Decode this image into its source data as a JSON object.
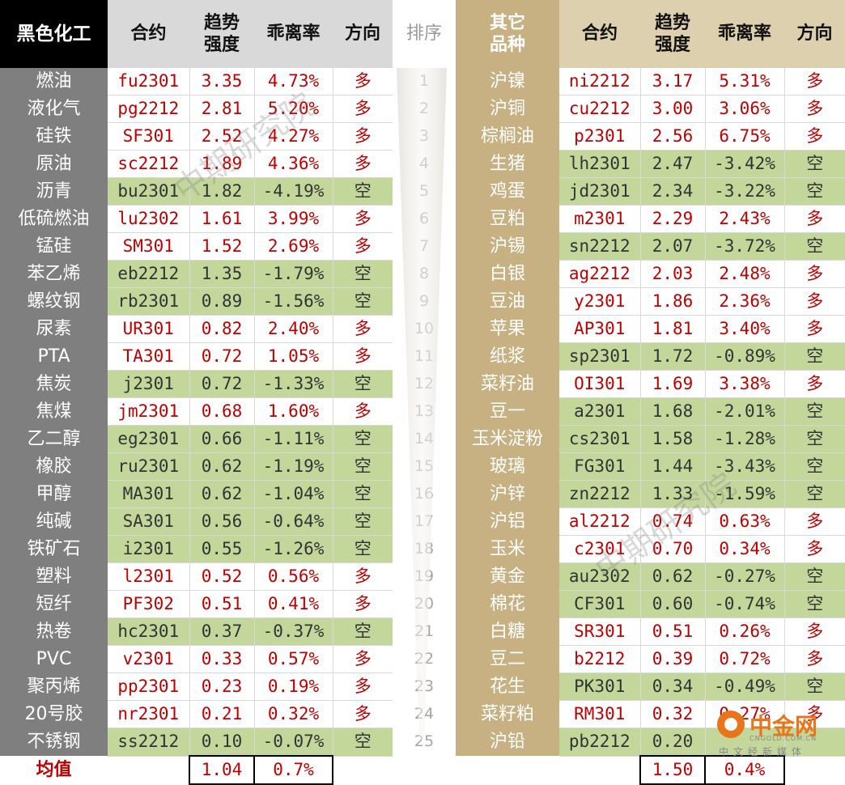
{
  "header": {
    "left_category": "黑色化工",
    "contract": "合约",
    "trend_strength": "趋势\n强度",
    "deviation_rate": "乖离率",
    "direction": "方向",
    "rank": "排序",
    "right_category": "其它\n品种"
  },
  "left_rows": [
    {
      "name": "燃油",
      "contract": "fu2301",
      "strength": "3.35",
      "deviation": "4.73%",
      "direction": "多"
    },
    {
      "name": "液化气",
      "contract": "pg2212",
      "strength": "2.81",
      "deviation": "5.20%",
      "direction": "多"
    },
    {
      "name": "硅铁",
      "contract": "SF301",
      "strength": "2.52",
      "deviation": "4.27%",
      "direction": "多"
    },
    {
      "name": "原油",
      "contract": "sc2212",
      "strength": "1.89",
      "deviation": "4.36%",
      "direction": "多"
    },
    {
      "name": "沥青",
      "contract": "bu2301",
      "strength": "1.82",
      "deviation": "-4.19%",
      "direction": "空"
    },
    {
      "name": "低硫燃油",
      "contract": "lu2302",
      "strength": "1.61",
      "deviation": "3.99%",
      "direction": "多"
    },
    {
      "name": "锰硅",
      "contract": "SM301",
      "strength": "1.52",
      "deviation": "2.69%",
      "direction": "多"
    },
    {
      "name": "苯乙烯",
      "contract": "eb2212",
      "strength": "1.35",
      "deviation": "-1.79%",
      "direction": "空"
    },
    {
      "name": "螺纹钢",
      "contract": "rb2301",
      "strength": "0.89",
      "deviation": "-1.56%",
      "direction": "空"
    },
    {
      "name": "尿素",
      "contract": "UR301",
      "strength": "0.82",
      "deviation": "2.40%",
      "direction": "多"
    },
    {
      "name": "PTA",
      "contract": "TA301",
      "strength": "0.72",
      "deviation": "1.05%",
      "direction": "多"
    },
    {
      "name": "焦炭",
      "contract": "j2301",
      "strength": "0.72",
      "deviation": "-1.33%",
      "direction": "空"
    },
    {
      "name": "焦煤",
      "contract": "jm2301",
      "strength": "0.68",
      "deviation": "1.60%",
      "direction": "多"
    },
    {
      "name": "乙二醇",
      "contract": "eg2301",
      "strength": "0.66",
      "deviation": "-1.11%",
      "direction": "空"
    },
    {
      "name": "橡胶",
      "contract": "ru2301",
      "strength": "0.62",
      "deviation": "-1.19%",
      "direction": "空"
    },
    {
      "name": "甲醇",
      "contract": "MA301",
      "strength": "0.62",
      "deviation": "-1.04%",
      "direction": "空"
    },
    {
      "name": "纯碱",
      "contract": "SA301",
      "strength": "0.56",
      "deviation": "-0.64%",
      "direction": "空"
    },
    {
      "name": "铁矿石",
      "contract": "i2301",
      "strength": "0.55",
      "deviation": "-1.26%",
      "direction": "空"
    },
    {
      "name": "塑料",
      "contract": "l2301",
      "strength": "0.52",
      "deviation": "0.56%",
      "direction": "多"
    },
    {
      "name": "短纤",
      "contract": "PF302",
      "strength": "0.51",
      "deviation": "0.41%",
      "direction": "多"
    },
    {
      "name": "热卷",
      "contract": "hc2301",
      "strength": "0.37",
      "deviation": "-0.37%",
      "direction": "空"
    },
    {
      "name": "PVC",
      "contract": "v2301",
      "strength": "0.33",
      "deviation": "0.57%",
      "direction": "多"
    },
    {
      "name": "聚丙烯",
      "contract": "pp2301",
      "strength": "0.23",
      "deviation": "0.19%",
      "direction": "多"
    },
    {
      "name": "20号胶",
      "contract": "nr2301",
      "strength": "0.21",
      "deviation": "0.32%",
      "direction": "多"
    },
    {
      "name": "不锈钢",
      "contract": "ss2212",
      "strength": "0.10",
      "deviation": "-0.07%",
      "direction": "空"
    }
  ],
  "ranks": [
    "1",
    "2",
    "3",
    "4",
    "5",
    "6",
    "7",
    "8",
    "9",
    "10",
    "11",
    "12",
    "13",
    "14",
    "15",
    "16",
    "17",
    "18",
    "19",
    "20",
    "21",
    "22",
    "23",
    "24",
    "25"
  ],
  "right_rows": [
    {
      "name": "沪镍",
      "contract": "ni2212",
      "strength": "3.17",
      "deviation": "5.31%",
      "direction": "多"
    },
    {
      "name": "沪铜",
      "contract": "cu2212",
      "strength": "3.00",
      "deviation": "3.06%",
      "direction": "多"
    },
    {
      "name": "棕榈油",
      "contract": "p2301",
      "strength": "2.56",
      "deviation": "6.75%",
      "direction": "多"
    },
    {
      "name": "生猪",
      "contract": "lh2301",
      "strength": "2.47",
      "deviation": "-3.42%",
      "direction": "空"
    },
    {
      "name": "鸡蛋",
      "contract": "jd2301",
      "strength": "2.34",
      "deviation": "-3.22%",
      "direction": "空"
    },
    {
      "name": "豆粕",
      "contract": "m2301",
      "strength": "2.29",
      "deviation": "2.43%",
      "direction": "多"
    },
    {
      "name": "沪锡",
      "contract": "sn2212",
      "strength": "2.07",
      "deviation": "-3.72%",
      "direction": "空"
    },
    {
      "name": "白银",
      "contract": "ag2212",
      "strength": "2.03",
      "deviation": "2.48%",
      "direction": "多"
    },
    {
      "name": "豆油",
      "contract": "y2301",
      "strength": "1.86",
      "deviation": "2.36%",
      "direction": "多"
    },
    {
      "name": "苹果",
      "contract": "AP301",
      "strength": "1.81",
      "deviation": "3.40%",
      "direction": "多"
    },
    {
      "name": "纸浆",
      "contract": "sp2301",
      "strength": "1.72",
      "deviation": "-0.89%",
      "direction": "空"
    },
    {
      "name": "菜籽油",
      "contract": "OI301",
      "strength": "1.69",
      "deviation": "3.38%",
      "direction": "多"
    },
    {
      "name": "豆一",
      "contract": "a2301",
      "strength": "1.68",
      "deviation": "-2.01%",
      "direction": "空"
    },
    {
      "name": "玉米淀粉",
      "contract": "cs2301",
      "strength": "1.58",
      "deviation": "-1.28%",
      "direction": "空"
    },
    {
      "name": "玻璃",
      "contract": "FG301",
      "strength": "1.44",
      "deviation": "-3.43%",
      "direction": "空"
    },
    {
      "name": "沪锌",
      "contract": "zn2212",
      "strength": "1.33",
      "deviation": "-1.59%",
      "direction": "空"
    },
    {
      "name": "沪铝",
      "contract": "al2212",
      "strength": "0.74",
      "deviation": "0.63%",
      "direction": "多"
    },
    {
      "name": "玉米",
      "contract": "c2301",
      "strength": "0.70",
      "deviation": "0.34%",
      "direction": "多"
    },
    {
      "name": "黄金",
      "contract": "au2302",
      "strength": "0.62",
      "deviation": "-0.27%",
      "direction": "空"
    },
    {
      "name": "棉花",
      "contract": "CF301",
      "strength": "0.60",
      "deviation": "-0.74%",
      "direction": "空"
    },
    {
      "name": "白糖",
      "contract": "SR301",
      "strength": "0.51",
      "deviation": "0.26%",
      "direction": "多"
    },
    {
      "name": "豆二",
      "contract": "b2212",
      "strength": "0.39",
      "deviation": "0.72%",
      "direction": "多"
    },
    {
      "name": "花生",
      "contract": "PK301",
      "strength": "0.34",
      "deviation": "-0.49%",
      "direction": "空"
    },
    {
      "name": "菜籽粕",
      "contract": "RM301",
      "strength": "0.32",
      "deviation": "0.27%",
      "direction": "多"
    },
    {
      "name": "沪铅",
      "contract": "pb2212",
      "strength": "0.20",
      "deviation": "",
      "direction": ""
    }
  ],
  "footer": {
    "label": "均值",
    "left_strength_avg": "1.04",
    "left_deviation_avg": "0.7%",
    "right_strength_avg": "1.50",
    "right_deviation_avg": "0.4%"
  },
  "watermarks": [
    "中期研究院",
    "中期研究院"
  ],
  "logo": {
    "text": "中金网",
    "url_text": "CNGOLD.COM.CN",
    "tagline": "中文经新媒体"
  },
  "colors": {
    "long_text": "#c00000",
    "short_fill": "#c4d79b",
    "left_name_fill": "#7f7f7f",
    "right_name_fill": "#c7b081",
    "left_category_fill": "#000000"
  }
}
